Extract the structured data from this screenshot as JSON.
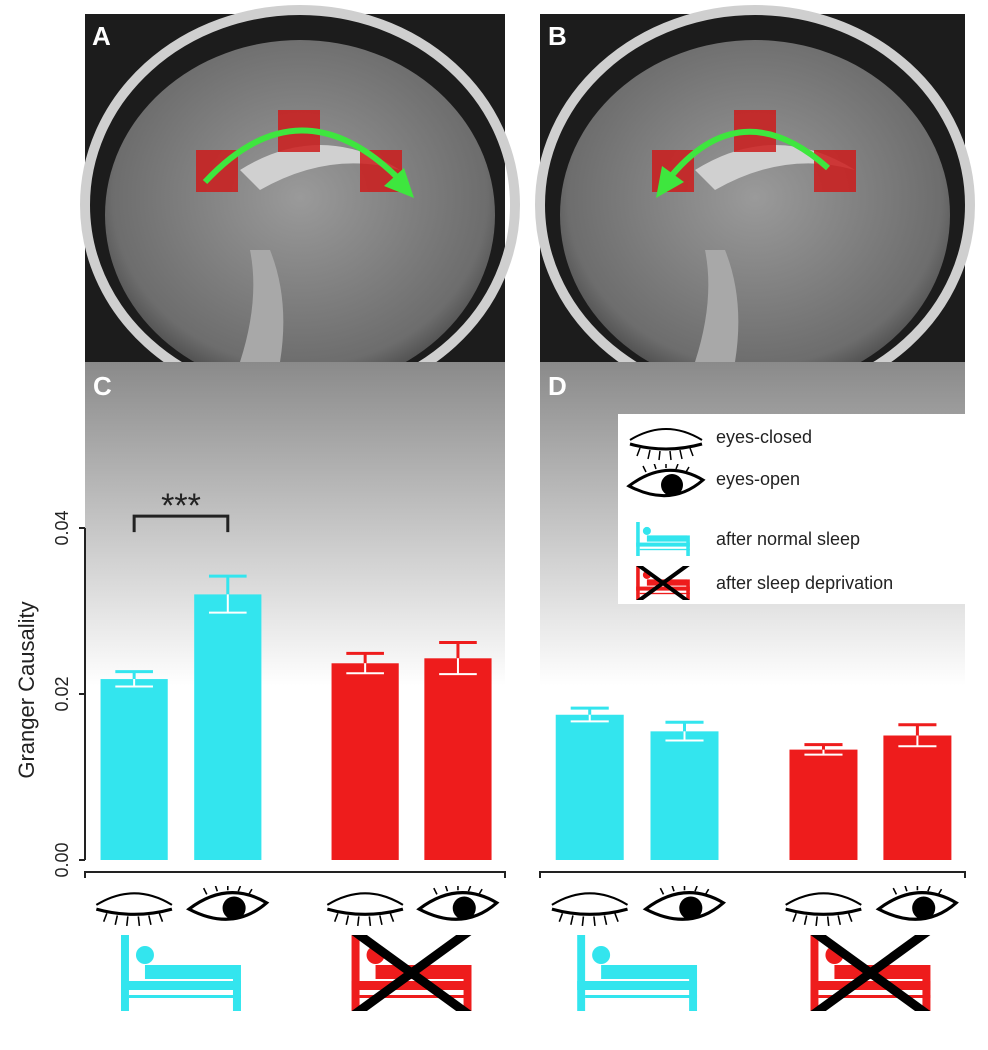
{
  "images": [
    {
      "label": "A"
    },
    {
      "label": "B"
    }
  ],
  "chart_data": [
    {
      "type": "bar",
      "panel_label": "C",
      "y_label": "Granger Causality",
      "annotation": "***",
      "ylim": [
        0,
        0.06
      ],
      "yticks": [
        {
          "value": 0,
          "label": "0.00"
        },
        0.02,
        0.04
      ],
      "series": [
        {
          "color": "#33e5ee",
          "values": [
            0.0218,
            0.032
          ],
          "errors": [
            0.0009,
            0.0022
          ]
        },
        {
          "color": "#ee1c1c",
          "values": [
            0.0237,
            0.0243
          ],
          "errors": [
            0.0012,
            0.0019
          ]
        }
      ]
    },
    {
      "type": "bar",
      "panel_label": "D",
      "categories": [
        "eyes-closed",
        "eyes-open"
      ],
      "ylim": [
        0,
        0.06
      ],
      "series": [
        {
          "name": "after normal sleep",
          "color": "#33e5ee",
          "values": [
            0.0175,
            0.0155
          ],
          "errors": [
            0.0008,
            0.0011
          ]
        },
        {
          "name": "after sleep deprivation",
          "color": "#ee1c1c",
          "values": [
            0.0133,
            0.015
          ],
          "errors": [
            0.0006,
            0.0013
          ]
        }
      ]
    }
  ]
}
